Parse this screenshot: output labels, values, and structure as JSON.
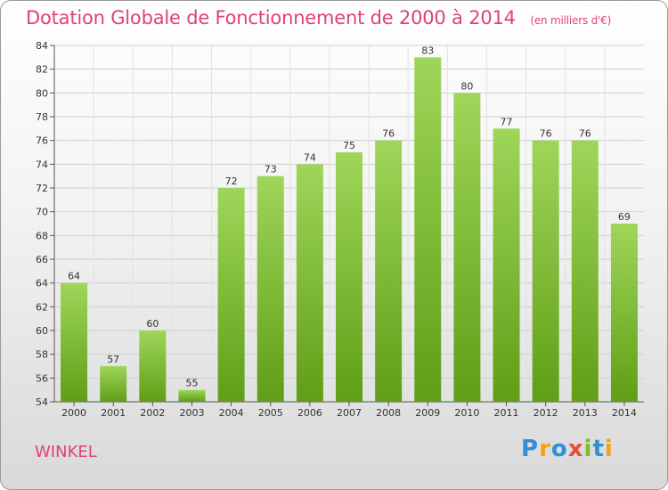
{
  "header": {
    "title": "Dotation Globale de Fonctionnement de 2000 à 2014",
    "unit": "(en milliers d'€)"
  },
  "footer": {
    "place": "WINKEL",
    "logo": [
      "P",
      "r",
      "o",
      "x",
      "i",
      "t",
      "i"
    ]
  },
  "colors": {
    "bar_light": "#9fd65a",
    "bar_dark": "#5f9e16",
    "title": "#e0407a"
  },
  "chart_data": {
    "type": "bar",
    "title": "Dotation Globale de Fonctionnement de 2000 à 2014",
    "subtitle": "(en milliers d'€)",
    "categories": [
      "2000",
      "2001",
      "2002",
      "2003",
      "2004",
      "2005",
      "2006",
      "2007",
      "2008",
      "2009",
      "2010",
      "2011",
      "2012",
      "2013",
      "2014"
    ],
    "values": [
      64,
      57,
      60,
      55,
      72,
      73,
      74,
      75,
      76,
      83,
      80,
      77,
      76,
      76,
      69
    ],
    "ylim": [
      54,
      84
    ],
    "yticks": [
      54,
      56,
      58,
      60,
      62,
      64,
      66,
      68,
      70,
      72,
      74,
      76,
      78,
      80,
      82,
      84
    ],
    "xlabel": "",
    "ylabel": "",
    "grid": true
  }
}
